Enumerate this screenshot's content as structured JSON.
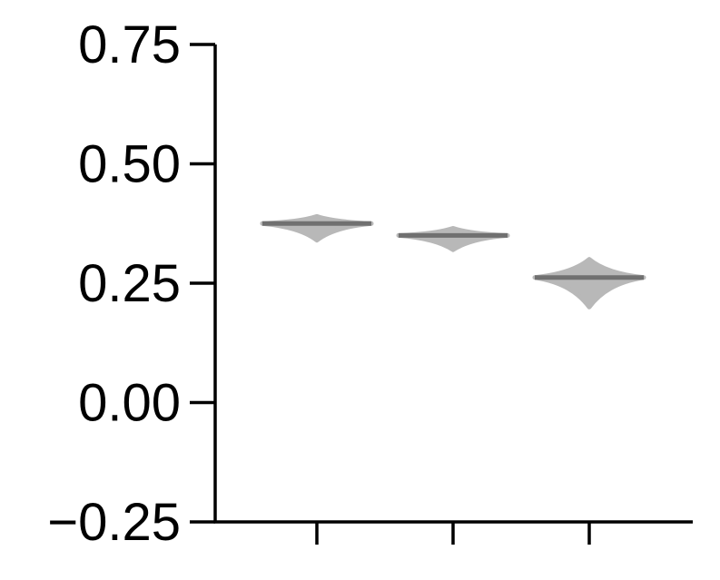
{
  "chart_data": {
    "type": "violin",
    "ylim": [
      -0.25,
      0.75
    ],
    "yticks": [
      {
        "value": -0.25,
        "label": "−0.25"
      },
      {
        "value": 0.0,
        "label": "0.00"
      },
      {
        "value": 0.25,
        "label": "0.25"
      },
      {
        "value": 0.5,
        "label": "0.50"
      },
      {
        "value": 0.75,
        "label": "0.75"
      }
    ],
    "xlabel": "",
    "ylabel": "",
    "grid": false,
    "colors": {
      "body": "#b8b8b8",
      "median": "#707070",
      "axis": "#000000"
    },
    "violins": [
      {
        "median": 0.375,
        "min": 0.34,
        "max": 0.39
      },
      {
        "median": 0.35,
        "min": 0.32,
        "max": 0.365
      },
      {
        "median": 0.262,
        "min": 0.2,
        "max": 0.3
      }
    ]
  }
}
